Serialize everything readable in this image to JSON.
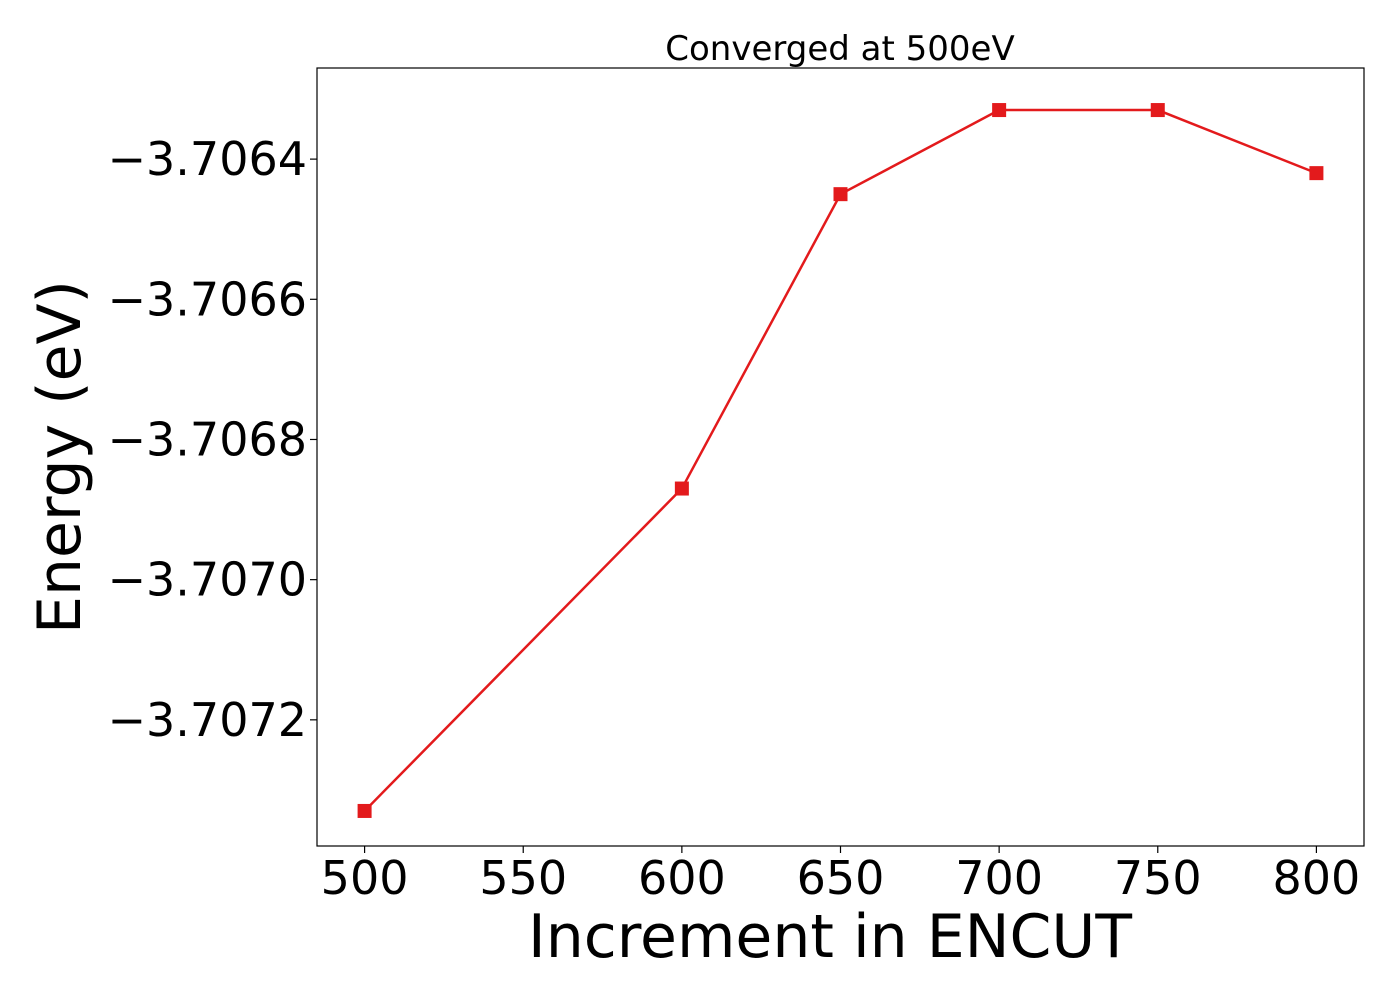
{
  "chart_data": {
    "type": "line",
    "title": "Converged at 500eV",
    "xlabel": "Increment in ENCUT",
    "ylabel": "Energy (eV)",
    "x": [
      500,
      600,
      650,
      700,
      750,
      800
    ],
    "series": [
      {
        "values": [
          -3.70733,
          -3.70687,
          -3.70645,
          -3.70633,
          -3.70633,
          -3.70642
        ]
      }
    ],
    "xlim": [
      485,
      815
    ],
    "ylim": [
      -3.70738,
      -3.70627
    ],
    "xticks": [
      500,
      550,
      600,
      650,
      700,
      750,
      800
    ],
    "yticks": [
      -3.7064,
      -3.7066,
      -3.7068,
      -3.707,
      -3.7072
    ],
    "ytick_labels": [
      "−3.7064",
      "−3.7066",
      "−3.7068",
      "−3.7070",
      "−3.7072"
    ],
    "grid": false,
    "line_color": "#e31a1c",
    "marker": "square"
  }
}
